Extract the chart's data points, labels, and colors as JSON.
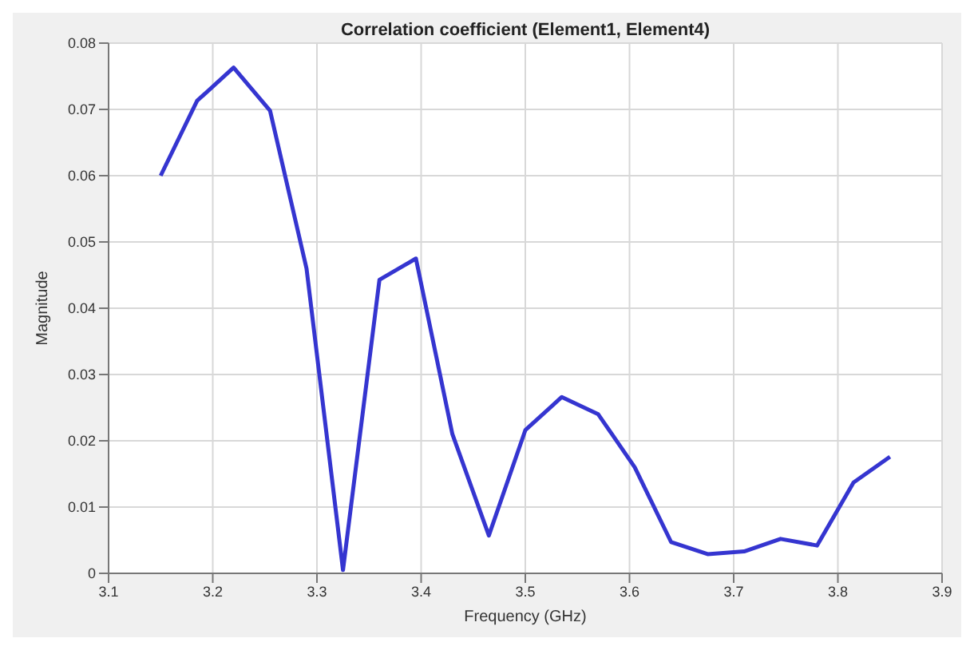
{
  "chart_data": {
    "type": "line",
    "title": "Correlation coefficient (Element1, Element4)",
    "xlabel": "Frequency (GHz)",
    "ylabel": "Magnitude",
    "x": [
      3.15,
      3.185,
      3.22,
      3.255,
      3.29,
      3.325,
      3.36,
      3.395,
      3.43,
      3.465,
      3.5,
      3.535,
      3.57,
      3.605,
      3.64,
      3.675,
      3.71,
      3.745,
      3.78,
      3.815,
      3.85
    ],
    "series": [
      {
        "color": "#3535d0",
        "values": [
          0.06,
          0.0713,
          0.0763,
          0.0698,
          0.046,
          0.0005,
          0.0443,
          0.0475,
          0.021,
          0.0057,
          0.0216,
          0.0266,
          0.024,
          0.016,
          0.0047,
          0.0029,
          0.0033,
          0.0052,
          0.0042,
          0.0137,
          0.0176
        ]
      }
    ],
    "xlim": [
      3.1,
      3.9
    ],
    "xticks": [
      3.1,
      3.2,
      3.3,
      3.4,
      3.5,
      3.6,
      3.7,
      3.8,
      3.9
    ],
    "ylim": [
      0,
      0.08
    ],
    "yticks": [
      0,
      0.01,
      0.02,
      0.03,
      0.04,
      0.05,
      0.06,
      0.07,
      0.08
    ],
    "grid": true,
    "marker": "none",
    "line_style": "solid",
    "legend": false
  }
}
